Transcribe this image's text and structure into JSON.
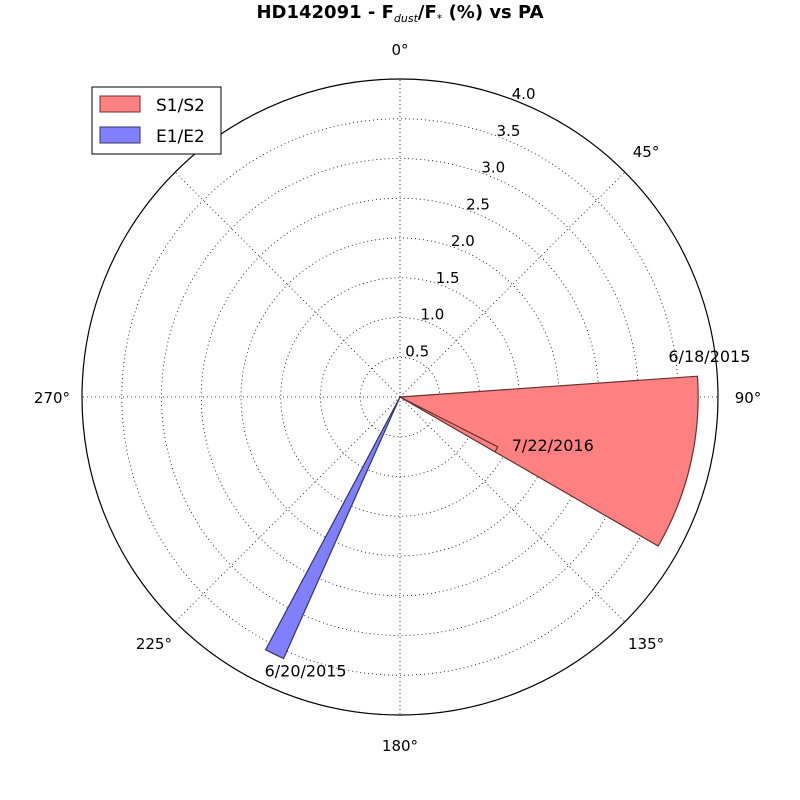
{
  "chart_data": {
    "type": "polar-bar",
    "title": {
      "prefix": "HD142091 - F",
      "sub1": "dust",
      "mid": "/F",
      "sub2": "*",
      "suffix": " (%) vs PA"
    },
    "radial_ticks": [
      "0.5",
      "1.0",
      "1.5",
      "2.0",
      "2.5",
      "3.0",
      "3.5",
      "4.0"
    ],
    "radial_tick_values": [
      0.5,
      1.0,
      1.5,
      2.0,
      2.5,
      3.0,
      3.5,
      4.0
    ],
    "angle_ticks": [
      "0°",
      "45°",
      "90°",
      "135°",
      "180°",
      "225°",
      "270°"
    ],
    "angle_tick_values": [
      0,
      45,
      90,
      135,
      180,
      225,
      270
    ],
    "rmax": 4.0,
    "grid": true,
    "legend_position": "top-left",
    "series": [
      {
        "name": "S1/S2",
        "color": "#ff8080",
        "edge": "#663333",
        "bars": [
          {
            "label": "6/18/2015",
            "pa_start": 86,
            "pa_end": 120,
            "value": 3.75
          },
          {
            "label": "7/22/2016",
            "pa_start": 117,
            "pa_end": 120,
            "value": 1.38
          }
        ]
      },
      {
        "name": "E1/E2",
        "color": "#8080ff",
        "edge": "#333366",
        "bars": [
          {
            "label": "6/20/2015",
            "pa_start": 204,
            "pa_end": 208,
            "value": 3.6
          }
        ]
      }
    ]
  }
}
